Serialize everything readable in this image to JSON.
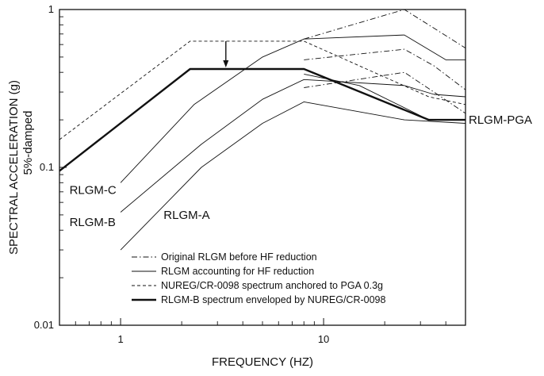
{
  "chart_data": {
    "type": "line",
    "xlabel": "FREQUENCY (HZ)",
    "ylabel": "SPECTRAL ACCELERATION (g)",
    "ylabel2": "5%-damped",
    "xscale": "log",
    "yscale": "log",
    "xlim": [
      0.5,
      50
    ],
    "ylim": [
      0.01,
      1
    ],
    "xticks": [
      {
        "value": 1,
        "label": "1"
      },
      {
        "value": 10,
        "label": "10"
      }
    ],
    "yticks": [
      {
        "value": 0.01,
        "label": "0.01"
      },
      {
        "value": 0.1,
        "label": "0.1"
      },
      {
        "value": 1,
        "label": "1"
      }
    ],
    "grid": false,
    "legend": {
      "position": "bottom-center",
      "entries": [
        {
          "label": "Original RLGM before HF reduction",
          "style": "dashdot"
        },
        {
          "label": "RLGM accounting for HF reduction",
          "style": "thin"
        },
        {
          "label": "NUREG/CR-0098 spectrum anchored to PGA 0.3g",
          "style": "dashed"
        },
        {
          "label": "RLGM-B spectrum enveloped by NUREG/CR-0098",
          "style": "thick"
        }
      ]
    },
    "annotations": [
      {
        "text": "RLGM-C",
        "x": 0.55,
        "y": 0.072
      },
      {
        "text": "RLGM-B",
        "x": 0.55,
        "y": 0.045
      },
      {
        "text": "RLGM-A",
        "x": 1.6,
        "y": 0.05
      },
      {
        "text": "RLGM-PGA",
        "x": 52,
        "y": 0.2
      }
    ],
    "arrow": {
      "x": 3.3,
      "y_from": 0.63,
      "y_to": 0.43
    },
    "series": [
      {
        "style": "dashdot",
        "points": [
          [
            8,
            0.65
          ],
          [
            25,
            1.0
          ],
          [
            50,
            0.57
          ]
        ]
      },
      {
        "style": "dashdot",
        "points": [
          [
            8,
            0.48
          ],
          [
            25,
            0.56
          ],
          [
            35,
            0.44
          ],
          [
            50,
            0.31
          ]
        ]
      },
      {
        "style": "dashdot",
        "points": [
          [
            8,
            0.32
          ],
          [
            25,
            0.4
          ],
          [
            35,
            0.3
          ],
          [
            50,
            0.22
          ]
        ]
      },
      {
        "style": "thin",
        "points": [
          [
            1,
            0.08
          ],
          [
            2.3,
            0.25
          ],
          [
            5,
            0.5
          ],
          [
            8,
            0.65
          ],
          [
            25,
            0.69
          ],
          [
            40,
            0.48
          ],
          [
            50,
            0.48
          ]
        ]
      },
      {
        "style": "thin",
        "points": [
          [
            1,
            0.052
          ],
          [
            2.5,
            0.14
          ],
          [
            5,
            0.27
          ],
          [
            8,
            0.36
          ],
          [
            25,
            0.33
          ],
          [
            35,
            0.29
          ],
          [
            50,
            0.28
          ]
        ]
      },
      {
        "style": "thin",
        "points": [
          [
            1,
            0.03
          ],
          [
            2.5,
            0.1
          ],
          [
            5,
            0.19
          ],
          [
            8,
            0.26
          ],
          [
            25,
            0.2
          ],
          [
            50,
            0.19
          ]
        ]
      },
      {
        "style": "thin",
        "points": [
          [
            8,
            0.39
          ],
          [
            15,
            0.33
          ],
          [
            33,
            0.2
          ],
          [
            50,
            0.2
          ]
        ]
      },
      {
        "style": "dashed",
        "points": [
          [
            0.5,
            0.15
          ],
          [
            2.2,
            0.63
          ],
          [
            8,
            0.63
          ],
          [
            33,
            0.28
          ],
          [
            50,
            0.25
          ]
        ]
      },
      {
        "style": "thick",
        "points": [
          [
            0.5,
            0.095
          ],
          [
            2.2,
            0.42
          ],
          [
            8,
            0.42
          ],
          [
            33,
            0.2
          ],
          [
            50,
            0.2
          ]
        ]
      }
    ]
  }
}
